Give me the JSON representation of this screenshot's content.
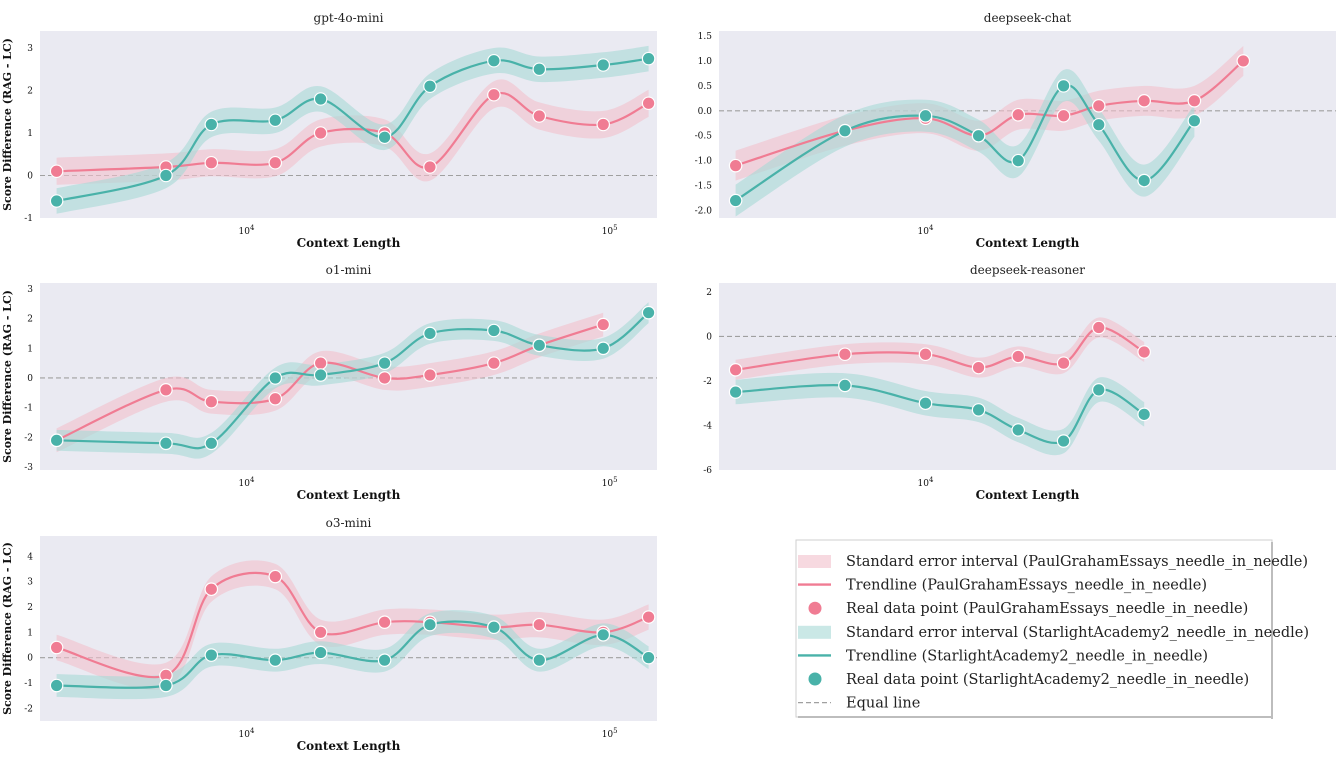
{
  "colors": {
    "paul": "#f07c93",
    "paul_band": "#f2c0cc",
    "star": "#49b2a9",
    "star_band": "#a7d8d6",
    "panel_bg": "#eaeaf2",
    "equal": "#a0a0a0"
  },
  "legend": {
    "placement": "lower-right",
    "items": [
      {
        "kind": "band",
        "series": "paul",
        "label": "Standard error interval (PaulGrahamEssays_needle_in_needle)"
      },
      {
        "kind": "line",
        "series": "paul",
        "label": "Trendline (PaulGrahamEssays_needle_in_needle)"
      },
      {
        "kind": "point",
        "series": "paul",
        "label": "Real data point (PaulGrahamEssays_needle_in_needle)"
      },
      {
        "kind": "band",
        "series": "star",
        "label": "Standard error interval (StarlightAcademy2_needle_in_needle)"
      },
      {
        "kind": "line",
        "series": "star",
        "label": "Trendline (StarlightAcademy2_needle_in_needle)"
      },
      {
        "kind": "point",
        "series": "star",
        "label": "Real data point (StarlightAcademy2_needle_in_needle)"
      },
      {
        "kind": "dash",
        "series": "equal",
        "label": "Equal line"
      }
    ]
  },
  "chart_data": [
    {
      "type": "line",
      "title": "gpt-4o-mini",
      "xlabel": "Context Length",
      "ylabel": "Score Difference (RAG - LC)",
      "xscale": "log",
      "xlim": [
        2700,
        135000
      ],
      "ylim": [
        -1,
        3.4
      ],
      "yticks": [
        3,
        2,
        1,
        0,
        -1
      ],
      "xticks": [
        {
          "value": 10000,
          "base": "10",
          "exp": "4"
        },
        {
          "value": 100000,
          "base": "10",
          "exp": "5"
        }
      ],
      "band_width": {
        "paul": 0.32,
        "star": 0.3
      },
      "series": [
        {
          "key": "paul",
          "name": "PaulGrahamEssays_needle_in_needle",
          "x": [
            3000,
            6000,
            8000,
            12000,
            16000,
            24000,
            32000,
            48000,
            64000,
            96000,
            128000
          ],
          "values": [
            0.1,
            0.2,
            0.3,
            0.3,
            1.0,
            1.0,
            0.2,
            1.9,
            1.4,
            1.2,
            1.7
          ]
        },
        {
          "key": "star",
          "name": "StarlightAcademy2_needle_in_needle",
          "x": [
            3000,
            6000,
            8000,
            12000,
            16000,
            24000,
            32000,
            48000,
            64000,
            96000,
            128000
          ],
          "values": [
            -0.6,
            0.0,
            1.2,
            1.3,
            1.8,
            0.9,
            2.1,
            2.7,
            2.5,
            2.6,
            2.75
          ]
        }
      ]
    },
    {
      "type": "line",
      "title": "deepseek-chat",
      "xlabel": "Context Length",
      "ylabel": "",
      "xscale": "log",
      "xlim": [
        2700,
        135000
      ],
      "ylim": [
        -2.15,
        1.6
      ],
      "yticks": [
        1.5,
        1.0,
        0.5,
        0.0,
        -0.5,
        -1.0,
        -1.5,
        -2.0
      ],
      "ytick_format": "1dp",
      "xticks": [
        {
          "value": 10000,
          "base": "10",
          "exp": "4"
        }
      ],
      "band_width": {
        "paul": 0.3,
        "star": 0.32
      },
      "series": [
        {
          "key": "paul",
          "name": "PaulGrahamEssays_needle_in_needle",
          "x": [
            3000,
            6000,
            10000,
            14000,
            18000,
            24000,
            30000,
            40000,
            55000,
            75000
          ],
          "values": [
            -1.1,
            -0.4,
            -0.15,
            -0.5,
            -0.08,
            -0.1,
            0.1,
            0.2,
            0.2,
            1.0
          ]
        },
        {
          "key": "star",
          "name": "StarlightAcademy2_needle_in_needle",
          "x": [
            3000,
            6000,
            10000,
            14000,
            18000,
            24000,
            30000,
            40000,
            55000
          ],
          "values": [
            -1.8,
            -0.4,
            -0.1,
            -0.5,
            -1.0,
            0.5,
            -0.28,
            -1.4,
            -0.2
          ]
        }
      ]
    },
    {
      "type": "line",
      "title": "o1-mini",
      "xlabel": "Context Length",
      "ylabel": "Score Difference (RAG - LC)",
      "xscale": "log",
      "xlim": [
        2700,
        135000
      ],
      "ylim": [
        -3.1,
        3.2
      ],
      "yticks": [
        3,
        2,
        1,
        0,
        -1,
        -2,
        -3
      ],
      "xticks": [
        {
          "value": 10000,
          "base": "10",
          "exp": "4"
        },
        {
          "value": 100000,
          "base": "10",
          "exp": "5"
        }
      ],
      "band_width": {
        "paul": 0.4,
        "star": 0.35
      },
      "series": [
        {
          "key": "paul",
          "name": "PaulGrahamEssays_needle_in_needle",
          "x": [
            3000,
            6000,
            8000,
            12000,
            16000,
            24000,
            32000,
            48000,
            64000,
            96000
          ],
          "values": [
            -2.1,
            -0.4,
            -0.8,
            -0.7,
            0.5,
            0.0,
            0.1,
            0.5,
            1.1,
            1.8
          ]
        },
        {
          "key": "star",
          "name": "StarlightAcademy2_needle_in_needle",
          "x": [
            3000,
            6000,
            8000,
            12000,
            16000,
            24000,
            32000,
            48000,
            64000,
            96000,
            128000
          ],
          "values": [
            -2.1,
            -2.2,
            -2.2,
            0.0,
            0.1,
            0.5,
            1.5,
            1.6,
            1.1,
            1.0,
            2.2
          ]
        }
      ]
    },
    {
      "type": "line",
      "title": "deepseek-reasoner",
      "xlabel": "Context Length",
      "ylabel": "",
      "xscale": "log",
      "xlim": [
        2700,
        135000
      ],
      "ylim": [
        -6,
        2.4
      ],
      "yticks": [
        2,
        0,
        -2,
        -4,
        -6
      ],
      "xticks": [
        {
          "value": 10000,
          "base": "10",
          "exp": "4"
        }
      ],
      "band_width": {
        "paul": 0.45,
        "star": 0.55
      },
      "series": [
        {
          "key": "paul",
          "name": "PaulGrahamEssays_needle_in_needle",
          "x": [
            3000,
            6000,
            10000,
            14000,
            18000,
            24000,
            30000,
            40000
          ],
          "values": [
            -1.5,
            -0.8,
            -0.8,
            -1.4,
            -0.9,
            -1.2,
            0.4,
            -0.7
          ]
        },
        {
          "key": "star",
          "name": "StarlightAcademy2_needle_in_needle",
          "x": [
            3000,
            6000,
            10000,
            14000,
            18000,
            24000,
            30000,
            40000
          ],
          "values": [
            -2.5,
            -2.2,
            -3.0,
            -3.3,
            -4.2,
            -4.7,
            -2.4,
            -3.5
          ]
        }
      ]
    },
    {
      "type": "line",
      "title": "o3-mini",
      "xlabel": "Context Length",
      "ylabel": "Score Difference (RAG - LC)",
      "xscale": "log",
      "xlim": [
        2700,
        135000
      ],
      "ylim": [
        -2.5,
        4.8
      ],
      "yticks": [
        4,
        3,
        2,
        1,
        0,
        -1,
        -2
      ],
      "xticks": [
        {
          "value": 10000,
          "base": "10",
          "exp": "4"
        },
        {
          "value": 100000,
          "base": "10",
          "exp": "5"
        }
      ],
      "band_width": {
        "paul": 0.5,
        "star": 0.45
      },
      "series": [
        {
          "key": "paul",
          "name": "PaulGrahamEssays_needle_in_needle",
          "x": [
            3000,
            6000,
            8000,
            12000,
            16000,
            24000,
            32000,
            48000,
            64000,
            96000,
            128000
          ],
          "values": [
            0.4,
            -0.7,
            2.7,
            3.2,
            1.0,
            1.4,
            1.4,
            1.2,
            1.3,
            1.0,
            1.6
          ]
        },
        {
          "key": "star",
          "name": "StarlightAcademy2_needle_in_needle",
          "x": [
            3000,
            6000,
            8000,
            12000,
            16000,
            24000,
            32000,
            48000,
            64000,
            96000,
            128000
          ],
          "values": [
            -1.1,
            -1.1,
            0.1,
            -0.1,
            0.2,
            -0.1,
            1.3,
            1.2,
            -0.1,
            0.9,
            0.0
          ]
        }
      ]
    }
  ]
}
